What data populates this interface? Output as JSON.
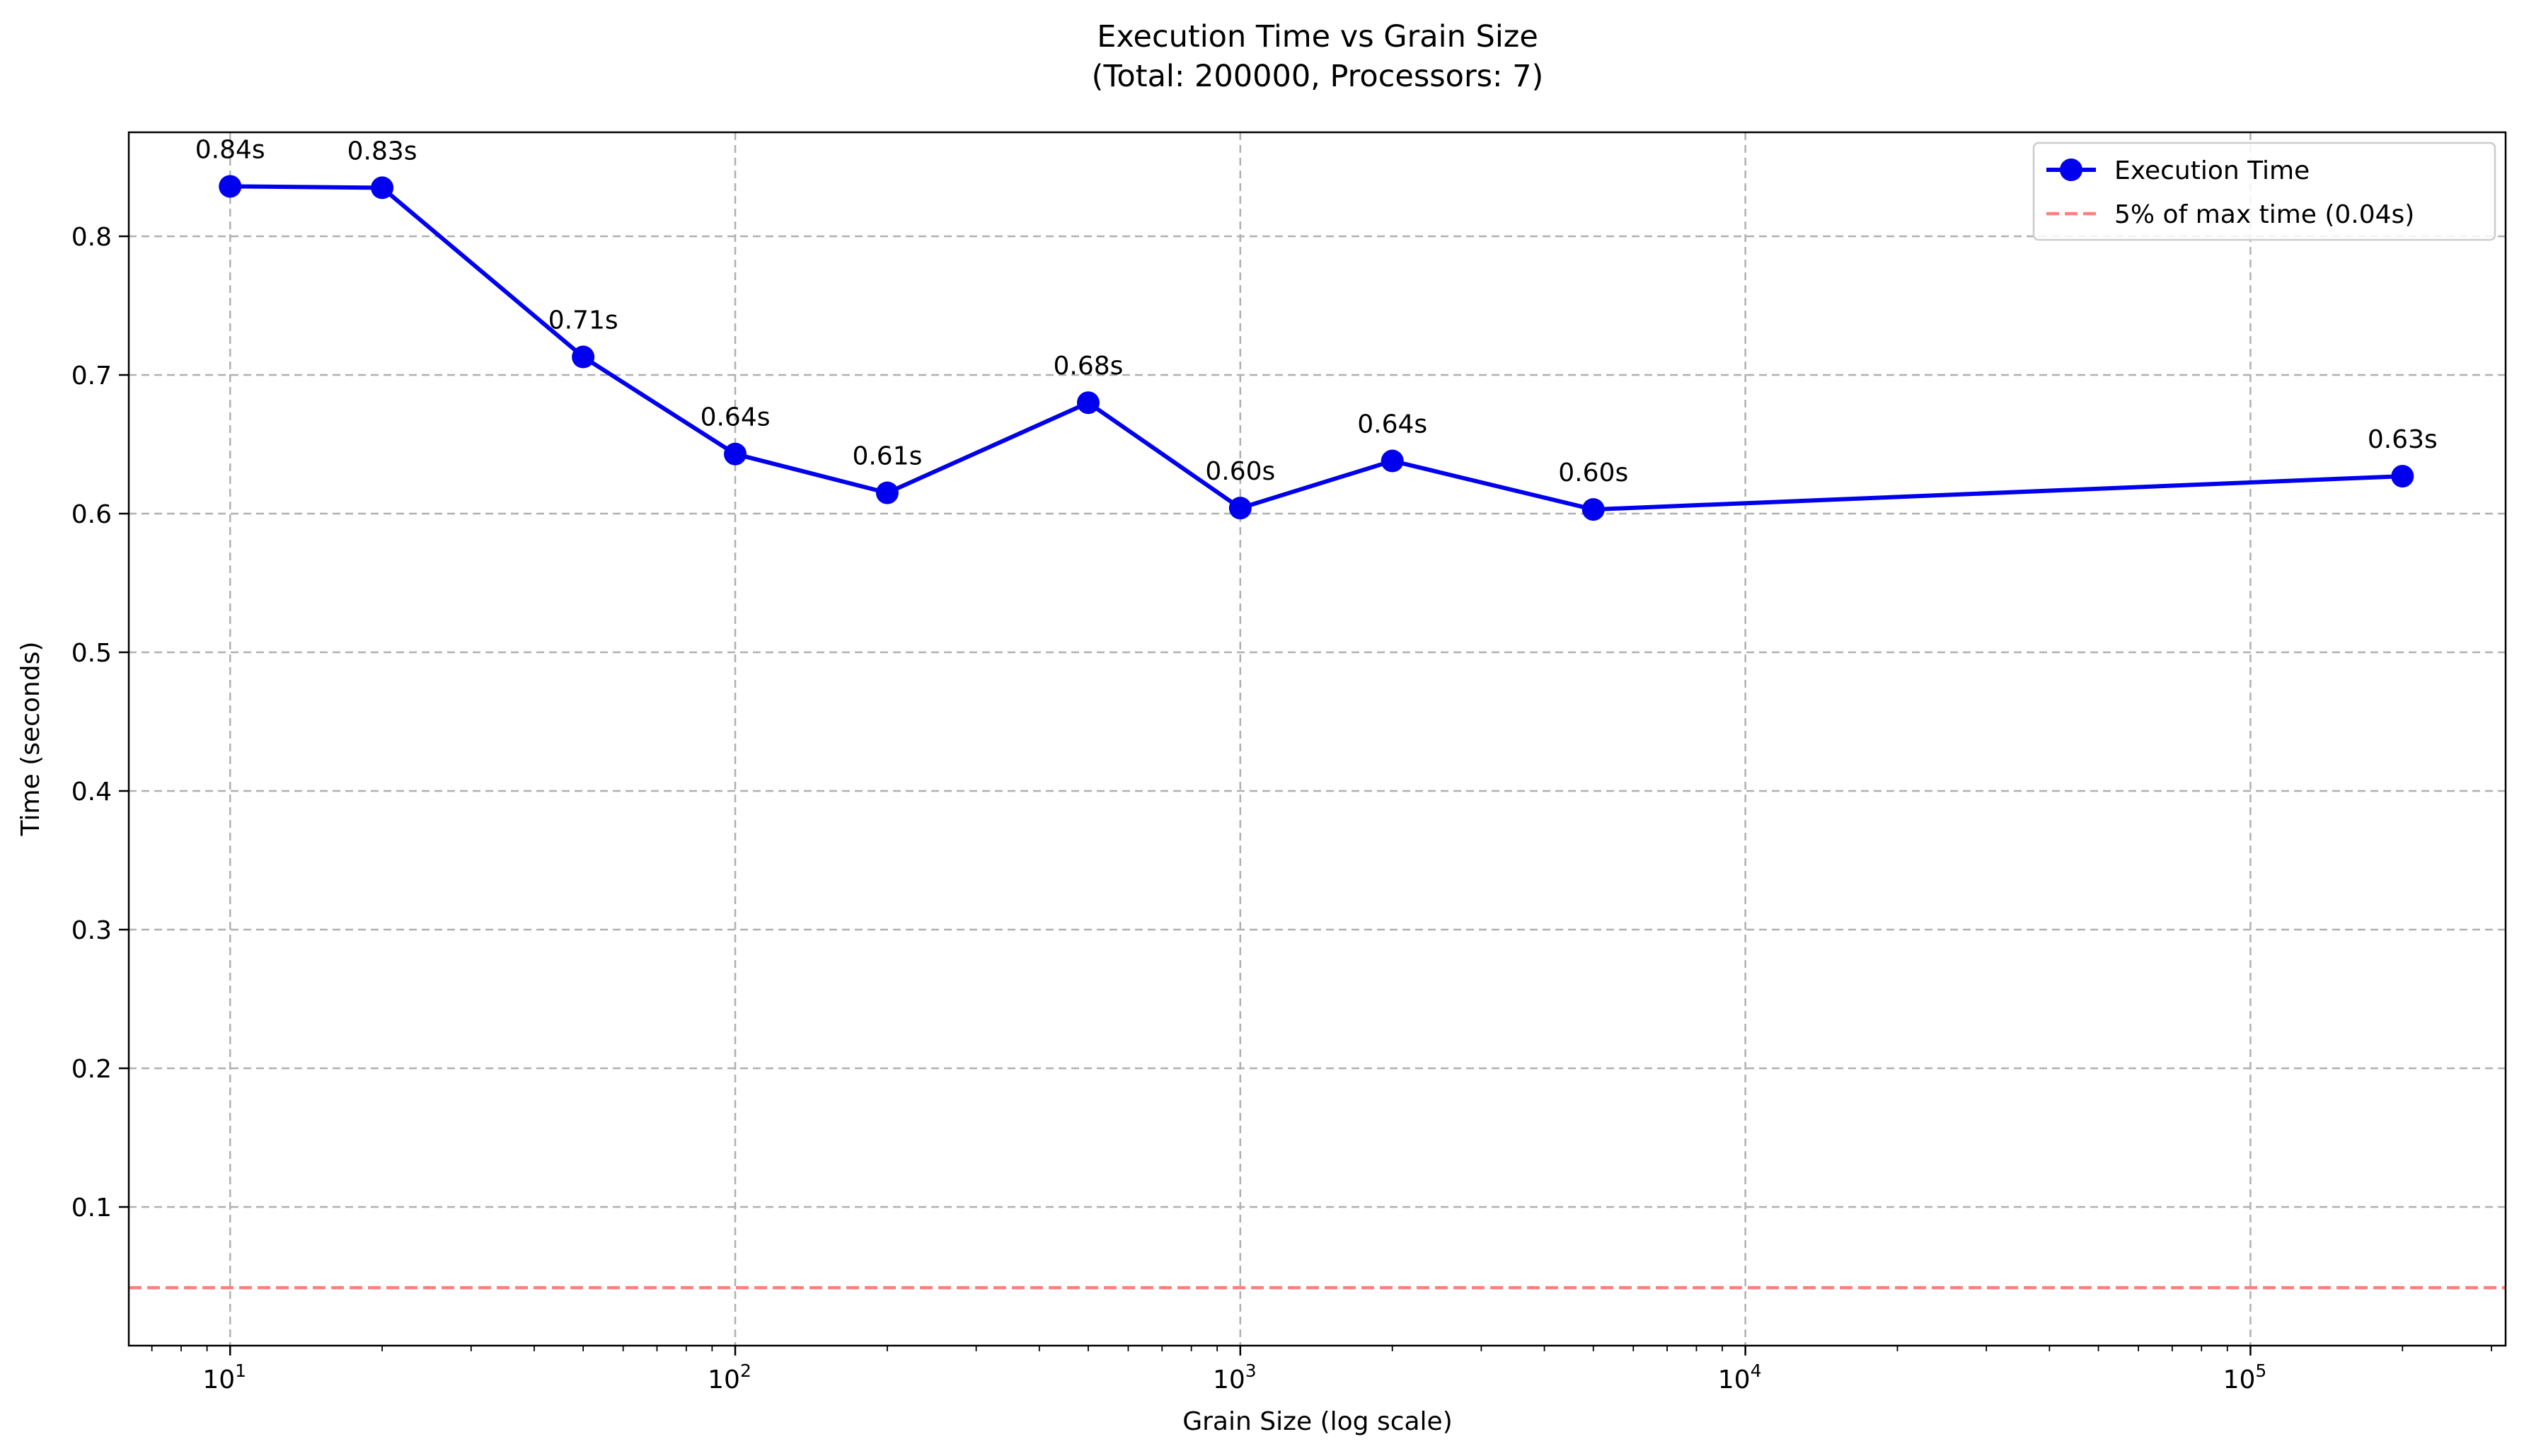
{
  "chart_data": {
    "type": "line",
    "title": "Execution Time vs Grain Size",
    "subtitle": "(Total: 200000, Processors: 7)",
    "xlabel": "Grain Size (log scale)",
    "ylabel": "Time (seconds)",
    "xscale": "log",
    "xlim": [
      6.3,
      320000
    ],
    "ylim": [
      0.0,
      0.875
    ],
    "x_ticks": [
      {
        "value": 10,
        "base": "10",
        "exp": "1"
      },
      {
        "value": 100,
        "base": "10",
        "exp": "2"
      },
      {
        "value": 1000,
        "base": "10",
        "exp": "3"
      },
      {
        "value": 10000,
        "base": "10",
        "exp": "4"
      },
      {
        "value": 100000,
        "base": "10",
        "exp": "5"
      }
    ],
    "y_ticks": [
      {
        "value": 0.1,
        "label": "0.1"
      },
      {
        "value": 0.2,
        "label": "0.2"
      },
      {
        "value": 0.3,
        "label": "0.3"
      },
      {
        "value": 0.4,
        "label": "0.4"
      },
      {
        "value": 0.5,
        "label": "0.5"
      },
      {
        "value": 0.6,
        "label": "0.6"
      },
      {
        "value": 0.7,
        "label": "0.7"
      },
      {
        "value": 0.8,
        "label": "0.8"
      }
    ],
    "grid": true,
    "legend_position": "top-right",
    "series": [
      {
        "name": "Execution Time",
        "color": "#0000ee",
        "x": [
          10,
          20,
          50,
          100,
          200,
          500,
          1000,
          2000,
          5000,
          200000
        ],
        "y": [
          0.836,
          0.835,
          0.713,
          0.643,
          0.615,
          0.68,
          0.604,
          0.638,
          0.603,
          0.627
        ],
        "labels": [
          "0.84s",
          "0.83s",
          "0.71s",
          "0.64s",
          "0.61s",
          "0.68s",
          "0.60s",
          "0.64s",
          "0.60s",
          "0.63s"
        ]
      }
    ],
    "reference_line": {
      "name": "5% of max time (0.04s)",
      "y": 0.0418,
      "color": "#ff7f7f"
    }
  }
}
